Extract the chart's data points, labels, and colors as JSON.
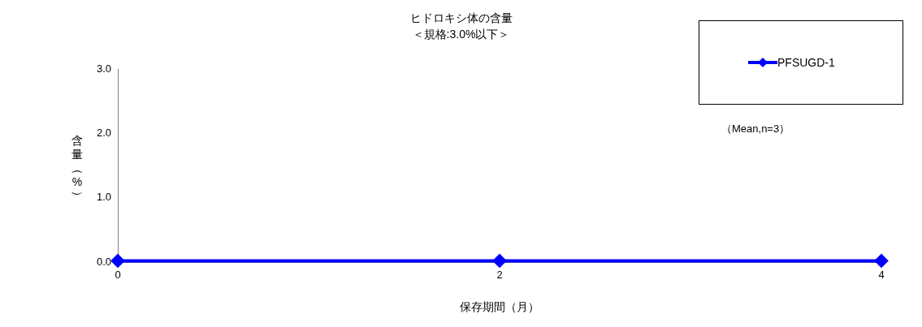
{
  "chart_data": {
    "type": "line",
    "title": "ヒドロキシ体の含量",
    "subtitle": "＜規格:3.0%以下＞",
    "xlabel": "保存期間（月）",
    "ylabel": "含量（%）",
    "annotations": [
      "（Mean,n=3）"
    ],
    "x": [
      0,
      2,
      4
    ],
    "series": [
      {
        "name": "PFSUGD-1",
        "color": "#0000ff",
        "values": [
          0.02,
          0.02,
          0.02
        ]
      }
    ],
    "xlim": [
      0,
      4
    ],
    "xticks": [
      0,
      2,
      4
    ],
    "ylim": [
      0,
      3
    ],
    "yticks": [
      {
        "value": 0,
        "label": "0.0"
      },
      {
        "value": 1,
        "label": "1.0"
      },
      {
        "value": 2,
        "label": "2.0"
      },
      {
        "value": 3,
        "label": "3.0"
      }
    ],
    "grid": false,
    "legend": "top right",
    "marker": "diamond",
    "line_style": "solid"
  }
}
